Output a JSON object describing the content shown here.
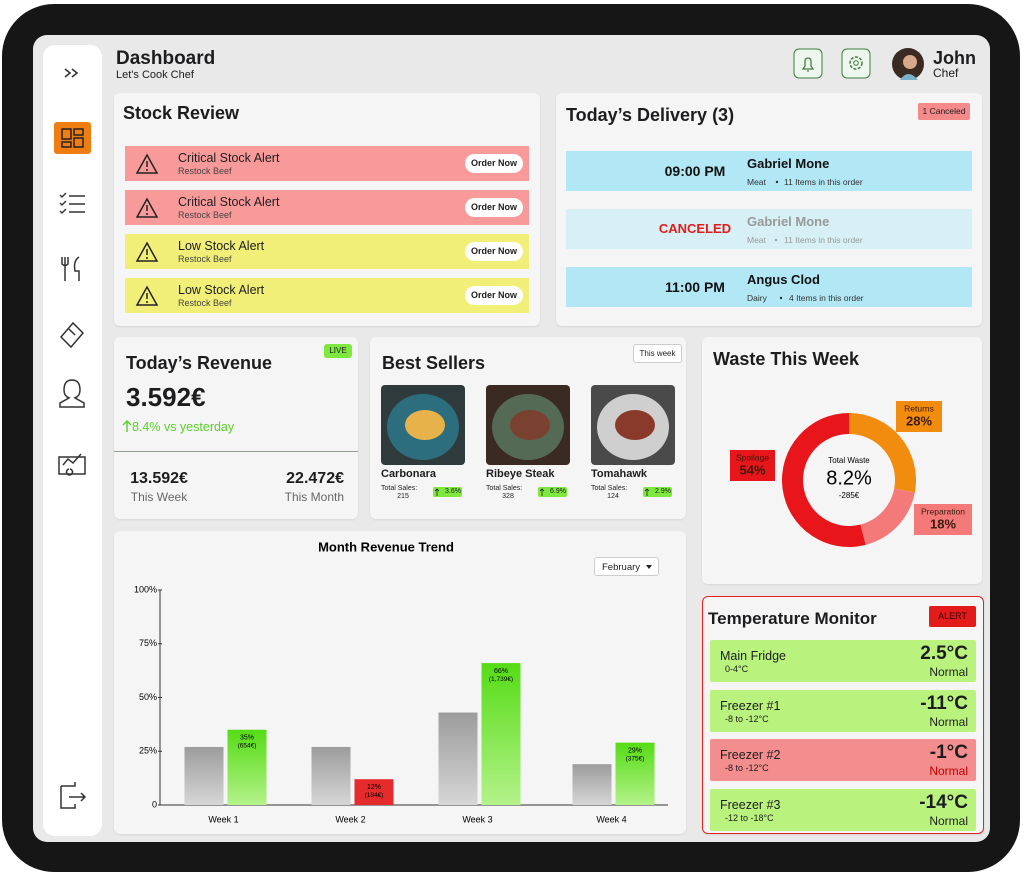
{
  "header": {
    "title": "Dashboard",
    "subtitle": "Let's Cook Chef",
    "user_name": "John",
    "user_role": "Chef"
  },
  "stock_review": {
    "title": "Stock Review",
    "alerts": [
      {
        "title": "Critical Stock Alert",
        "subtitle": "Restock Beef",
        "button": "Order Now"
      },
      {
        "title": "Critical Stock Alert",
        "subtitle": "Restock Beef",
        "button": "Order Now"
      },
      {
        "title": "Low Stock Alert",
        "subtitle": "Restock Beef",
        "button": "Order Now"
      },
      {
        "title": "Low Stock Alert",
        "subtitle": "Restock Beef",
        "button": "Order Now"
      }
    ]
  },
  "delivery": {
    "title": "Today’s Delivery (3)",
    "badge": "1 Canceled",
    "items": [
      {
        "time": "09:00 PM",
        "name": "Gabriel Mone",
        "category": "Meat",
        "detail": "11 Items in this order"
      },
      {
        "time": "CANCELED",
        "name": "Gabriel Mone",
        "category": "Meat",
        "detail": "11 Items in this order"
      },
      {
        "time": "11:00 PM",
        "name": "Angus Clod",
        "category": "Dairy",
        "detail": "4 Items in this order"
      }
    ]
  },
  "revenue": {
    "title": "Today’s Revenue",
    "badge": "LIVE",
    "amount": "3.592€",
    "change": "8.4% vs yesterday",
    "week_amount": "13.592€",
    "week_label": "This Week",
    "month_amount": "22.472€",
    "month_label": "This Month"
  },
  "best_sellers": {
    "title": "Best Sellers",
    "badge": "This week",
    "items": [
      {
        "name": "Carbonara",
        "sales_label": "Total Sales:",
        "sales": "215",
        "change": "3.6%"
      },
      {
        "name": "Ribeye Steak",
        "sales_label": "Total Sales:",
        "sales": "328",
        "change": "6.9%"
      },
      {
        "name": "Tomahawk",
        "sales_label": "Total Sales:",
        "sales": "124",
        "change": "2.9%"
      }
    ]
  },
  "chart_data": [
    {
      "type": "pie",
      "title": "Waste This Week",
      "center_label": "Total Waste",
      "center_value": "8.2%",
      "center_sub": "-285€",
      "categories": [
        "Returns",
        "Preparation",
        "Spoilage"
      ],
      "values": [
        28,
        18,
        54
      ],
      "value_labels": [
        "28%",
        "18%",
        "54%"
      ],
      "colors": [
        "#f28c0f",
        "#f47a7a",
        "#e8151b"
      ]
    },
    {
      "type": "bar",
      "title": "Month Revenue Trend",
      "filter": "February",
      "categories": [
        "Week 1",
        "Week 2",
        "Week 3",
        "Week 4"
      ],
      "series": [
        {
          "color": "#b0b0b0",
          "values": [
            27,
            27,
            43,
            19
          ]
        },
        {
          "colors": [
            "#6fe02a",
            "#e52b2b",
            "#6fe02a",
            "#6fe02a"
          ],
          "values": [
            35,
            12,
            66,
            29
          ],
          "value_labels": [
            "35%",
            "12%",
            "66%",
            "29%"
          ],
          "amount_labels": [
            "(654€)",
            "(184€)",
            "(1,739€)",
            "(375€)"
          ]
        }
      ],
      "ylim": [
        0,
        100
      ],
      "yticks": [
        0,
        {
          "value": 25,
          "label": "25%"
        },
        {
          "value": 50,
          "label": "50%"
        },
        {
          "value": 75,
          "label": "75%"
        },
        {
          "value": 100,
          "label": "100%"
        }
      ]
    }
  ],
  "temperature": {
    "title": "Temperature Monitor",
    "badge": "ALERT",
    "items": [
      {
        "name": "Main Fridge",
        "range": "0-4°C",
        "temp": "2.5°C",
        "status": "Normal"
      },
      {
        "name": "Freezer #1",
        "range": "-8 to -12°C",
        "temp": "-11°C",
        "status": "Normal"
      },
      {
        "name": "Freezer #2",
        "range": "-8 to -12°C",
        "temp": "-1°C",
        "status": "Normal"
      },
      {
        "name": "Freezer #3",
        "range": "-12 to -18°C",
        "temp": "-14°C",
        "status": "Normal"
      }
    ]
  }
}
